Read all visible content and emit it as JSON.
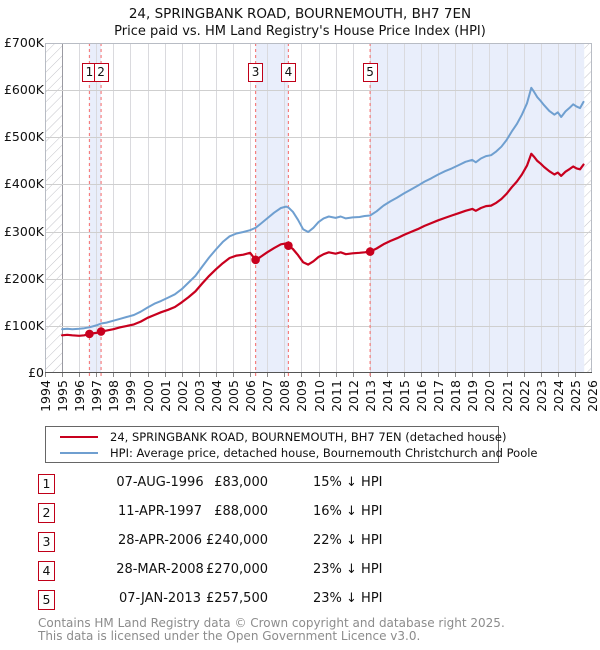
{
  "title": {
    "line1": "24, SPRINGBANK ROAD, BOURNEMOUTH, BH7 7EN",
    "line2": "Price paid vs. HM Land Registry's House Price Index (HPI)"
  },
  "colors": {
    "property_line": "#c8001e",
    "hpi_line": "#6f9fd0",
    "sale_marker": "#c8001e",
    "ownership_band": "#e9eefb",
    "sale_dotted_line": "#f47f7f",
    "gridline": "#cfcfcf",
    "year_gridline": "#dadade",
    "data_start_line": "#9a9aa2",
    "hatch_stroke": "#c4c4ca",
    "plot_border": "#b8bcc4",
    "axis_line": "#555555",
    "number_box_border": "#c00018",
    "footer_text": "#8c8c8c"
  },
  "chart_data": {
    "type": "line",
    "title": "24, SPRINGBANK ROAD, BOURNEMOUTH, BH7 7EN — Price paid vs. HPI",
    "xlabel": "",
    "ylabel": "",
    "xlim": [
      1994,
      2026
    ],
    "ylim": [
      0,
      700000
    ],
    "grid": true,
    "legend_position": "below",
    "x_axis": {
      "tick_labels": [
        "1994",
        "1995",
        "1996",
        "1997",
        "1998",
        "1999",
        "2000",
        "2001",
        "2002",
        "2003",
        "2004",
        "2005",
        "2006",
        "2007",
        "2008",
        "2009",
        "2010",
        "2011",
        "2012",
        "2013",
        "2014",
        "2015",
        "2016",
        "2017",
        "2018",
        "2019",
        "2020",
        "2021",
        "2022",
        "2023",
        "2024",
        "2025",
        "2026"
      ]
    },
    "y_axis": {
      "tick_labels": [
        "£0",
        "£100K",
        "£200K",
        "£300K",
        "£400K",
        "£500K",
        "£600K",
        "£700K"
      ],
      "tick_values_k": [
        0,
        100,
        200,
        300,
        400,
        500,
        600,
        700
      ]
    },
    "hatch_regions": [
      [
        1994,
        1995
      ],
      [
        2025.55,
        2026
      ]
    ],
    "ownership_bands": [
      [
        1996.6,
        1997.28
      ],
      [
        2006.32,
        2008.24
      ],
      [
        2013.02,
        2025.55
      ]
    ],
    "data_start_year": 1995,
    "sales": [
      {
        "num": "1",
        "year": 1996.6,
        "date": "07-AUG-1996",
        "price": 83000,
        "value_k": 83,
        "vs_hpi": "15% below HPI"
      },
      {
        "num": "2",
        "year": 1997.28,
        "date": "11-APR-1997",
        "price": 88000,
        "value_k": 88,
        "vs_hpi": "16% below HPI"
      },
      {
        "num": "3",
        "year": 2006.32,
        "date": "28-APR-2006",
        "price": 240000,
        "value_k": 240,
        "vs_hpi": "22% below HPI"
      },
      {
        "num": "4",
        "year": 2008.24,
        "date": "28-MAR-2008",
        "price": 270000,
        "value_k": 270,
        "vs_hpi": "23% below HPI"
      },
      {
        "num": "5",
        "year": 2013.02,
        "date": "07-JAN-2013",
        "price": 257500,
        "value_k": 257.5,
        "vs_hpi": "23% below HPI"
      }
    ],
    "series": [
      {
        "name": "24, SPRINGBANK ROAD, BOURNEMOUTH, BH7 7EN (detached house)",
        "color": "#c8001e",
        "width": 2.2,
        "points": [
          [
            1995.0,
            80
          ],
          [
            1995.3,
            81
          ],
          [
            1995.6,
            80
          ],
          [
            1996.0,
            79
          ],
          [
            1996.3,
            80
          ],
          [
            1996.6,
            83
          ],
          [
            1997.0,
            85
          ],
          [
            1997.28,
            88
          ],
          [
            1997.6,
            90
          ],
          [
            1998.0,
            93
          ],
          [
            1998.4,
            97
          ],
          [
            1998.8,
            100
          ],
          [
            1999.2,
            103
          ],
          [
            1999.6,
            109
          ],
          [
            2000.0,
            117
          ],
          [
            2000.4,
            123
          ],
          [
            2000.8,
            129
          ],
          [
            2001.2,
            134
          ],
          [
            2001.6,
            140
          ],
          [
            2002.0,
            150
          ],
          [
            2002.4,
            161
          ],
          [
            2002.8,
            173
          ],
          [
            2003.2,
            190
          ],
          [
            2003.6,
            206
          ],
          [
            2004.0,
            220
          ],
          [
            2004.4,
            233
          ],
          [
            2004.8,
            244
          ],
          [
            2005.2,
            249
          ],
          [
            2005.6,
            251
          ],
          [
            2006.0,
            255
          ],
          [
            2006.32,
            240
          ],
          [
            2006.6,
            246
          ],
          [
            2007.0,
            256
          ],
          [
            2007.4,
            265
          ],
          [
            2007.8,
            273
          ],
          [
            2008.1,
            275
          ],
          [
            2008.24,
            270
          ],
          [
            2008.5,
            263
          ],
          [
            2008.8,
            250
          ],
          [
            2009.1,
            235
          ],
          [
            2009.4,
            230
          ],
          [
            2009.7,
            237
          ],
          [
            2010.0,
            246
          ],
          [
            2010.3,
            252
          ],
          [
            2010.6,
            256
          ],
          [
            2011.0,
            253
          ],
          [
            2011.3,
            256
          ],
          [
            2011.6,
            252
          ],
          [
            2012.0,
            254
          ],
          [
            2012.4,
            255
          ],
          [
            2012.7,
            256
          ],
          [
            2013.02,
            257.5
          ],
          [
            2013.4,
            264
          ],
          [
            2013.8,
            273
          ],
          [
            2014.2,
            280
          ],
          [
            2014.6,
            286
          ],
          [
            2015.0,
            293
          ],
          [
            2015.4,
            299
          ],
          [
            2015.8,
            305
          ],
          [
            2016.2,
            312
          ],
          [
            2016.6,
            318
          ],
          [
            2017.0,
            324
          ],
          [
            2017.4,
            329
          ],
          [
            2017.8,
            334
          ],
          [
            2018.2,
            339
          ],
          [
            2018.6,
            344
          ],
          [
            2019.0,
            348
          ],
          [
            2019.2,
            344
          ],
          [
            2019.5,
            350
          ],
          [
            2019.8,
            354
          ],
          [
            2020.1,
            355
          ],
          [
            2020.4,
            361
          ],
          [
            2020.7,
            369
          ],
          [
            2021.0,
            380
          ],
          [
            2021.3,
            394
          ],
          [
            2021.6,
            406
          ],
          [
            2021.9,
            421
          ],
          [
            2022.2,
            440
          ],
          [
            2022.45,
            465
          ],
          [
            2022.6,
            459
          ],
          [
            2022.8,
            450
          ],
          [
            2023.0,
            444
          ],
          [
            2023.2,
            437
          ],
          [
            2023.5,
            428
          ],
          [
            2023.8,
            421
          ],
          [
            2024.0,
            425
          ],
          [
            2024.2,
            418
          ],
          [
            2024.45,
            427
          ],
          [
            2024.7,
            433
          ],
          [
            2024.9,
            438
          ],
          [
            2025.1,
            434
          ],
          [
            2025.3,
            432
          ],
          [
            2025.5,
            442
          ]
        ]
      },
      {
        "name": "HPI: Average price, detached house, Bournemouth Christchurch and Poole",
        "color": "#6f9fd0",
        "width": 2,
        "points": [
          [
            1995.0,
            93
          ],
          [
            1995.3,
            94
          ],
          [
            1995.6,
            93
          ],
          [
            1996.0,
            94
          ],
          [
            1996.3,
            95
          ],
          [
            1996.6,
            97
          ],
          [
            1997.0,
            101
          ],
          [
            1997.28,
            105
          ],
          [
            1997.6,
            107
          ],
          [
            1998.0,
            111
          ],
          [
            1998.4,
            115
          ],
          [
            1998.8,
            119
          ],
          [
            1999.2,
            123
          ],
          [
            1999.6,
            130
          ],
          [
            2000.0,
            139
          ],
          [
            2000.4,
            147
          ],
          [
            2000.8,
            153
          ],
          [
            2001.2,
            160
          ],
          [
            2001.6,
            167
          ],
          [
            2002.0,
            178
          ],
          [
            2002.4,
            192
          ],
          [
            2002.8,
            206
          ],
          [
            2003.2,
            226
          ],
          [
            2003.6,
            245
          ],
          [
            2004.0,
            262
          ],
          [
            2004.4,
            278
          ],
          [
            2004.8,
            290
          ],
          [
            2005.2,
            296
          ],
          [
            2005.6,
            299
          ],
          [
            2006.0,
            303
          ],
          [
            2006.32,
            308
          ],
          [
            2006.6,
            316
          ],
          [
            2007.0,
            328
          ],
          [
            2007.4,
            340
          ],
          [
            2007.8,
            350
          ],
          [
            2008.1,
            353
          ],
          [
            2008.24,
            351
          ],
          [
            2008.5,
            342
          ],
          [
            2008.8,
            325
          ],
          [
            2009.1,
            305
          ],
          [
            2009.4,
            299
          ],
          [
            2009.7,
            308
          ],
          [
            2010.0,
            320
          ],
          [
            2010.3,
            328
          ],
          [
            2010.6,
            332
          ],
          [
            2011.0,
            329
          ],
          [
            2011.3,
            332
          ],
          [
            2011.6,
            328
          ],
          [
            2012.0,
            330
          ],
          [
            2012.4,
            331
          ],
          [
            2012.7,
            333
          ],
          [
            2013.02,
            334
          ],
          [
            2013.4,
            343
          ],
          [
            2013.8,
            355
          ],
          [
            2014.2,
            364
          ],
          [
            2014.6,
            372
          ],
          [
            2015.0,
            381
          ],
          [
            2015.4,
            389
          ],
          [
            2015.8,
            397
          ],
          [
            2016.2,
            406
          ],
          [
            2016.6,
            413
          ],
          [
            2017.0,
            421
          ],
          [
            2017.4,
            428
          ],
          [
            2017.8,
            434
          ],
          [
            2018.2,
            441
          ],
          [
            2018.6,
            448
          ],
          [
            2019.0,
            452
          ],
          [
            2019.2,
            447
          ],
          [
            2019.5,
            455
          ],
          [
            2019.8,
            460
          ],
          [
            2020.1,
            462
          ],
          [
            2020.4,
            470
          ],
          [
            2020.7,
            480
          ],
          [
            2021.0,
            494
          ],
          [
            2021.3,
            512
          ],
          [
            2021.6,
            528
          ],
          [
            2021.9,
            548
          ],
          [
            2022.2,
            572
          ],
          [
            2022.45,
            605
          ],
          [
            2022.6,
            597
          ],
          [
            2022.8,
            585
          ],
          [
            2023.0,
            577
          ],
          [
            2023.2,
            568
          ],
          [
            2023.5,
            556
          ],
          [
            2023.8,
            548
          ],
          [
            2024.0,
            553
          ],
          [
            2024.2,
            543
          ],
          [
            2024.45,
            555
          ],
          [
            2024.7,
            563
          ],
          [
            2024.9,
            570
          ],
          [
            2025.1,
            565
          ],
          [
            2025.3,
            562
          ],
          [
            2025.5,
            575
          ]
        ]
      }
    ]
  },
  "legend": {
    "entries": [
      {
        "label": "24, SPRINGBANK ROAD, BOURNEMOUTH, BH7 7EN (detached house)",
        "color": "#c8001e"
      },
      {
        "label": "HPI: Average price, detached house, Bournemouth Christchurch and Poole",
        "color": "#6f9fd0"
      }
    ]
  },
  "table": {
    "rows": [
      {
        "num": "1",
        "date": "07-AUG-1996",
        "price": "£83,000",
        "hpi": "15% ↓ HPI"
      },
      {
        "num": "2",
        "date": "11-APR-1997",
        "price": "£88,000",
        "hpi": "16% ↓ HPI"
      },
      {
        "num": "3",
        "date": "28-APR-2006",
        "price": "£240,000",
        "hpi": "22% ↓ HPI"
      },
      {
        "num": "4",
        "date": "28-MAR-2008",
        "price": "£270,000",
        "hpi": "23% ↓ HPI"
      },
      {
        "num": "5",
        "date": "07-JAN-2013",
        "price": "£257,500",
        "hpi": "23% ↓ HPI"
      }
    ]
  },
  "footer": {
    "line1": "Contains HM Land Registry data © Crown copyright and database right 2025.",
    "line2": "This data is licensed under the Open Government Licence v3.0."
  }
}
